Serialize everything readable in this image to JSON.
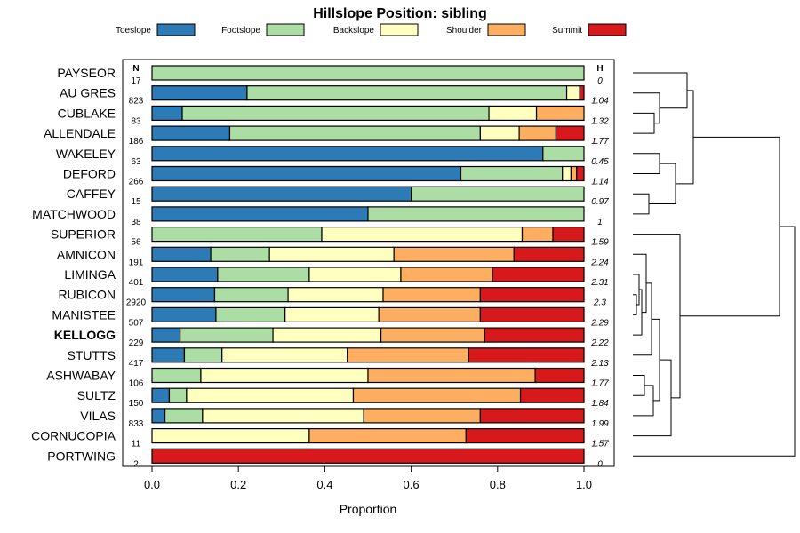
{
  "chart_data": {
    "type": "bar",
    "orientation": "horizontal",
    "stacked": true,
    "title": "Hillslope Position: sibling",
    "xlabel": "Proportion",
    "ylabel": "",
    "xlim": [
      0,
      1
    ],
    "xticks": [
      "0.0",
      "0.2",
      "0.4",
      "0.6",
      "0.8",
      "1.0"
    ],
    "n_header": "N",
    "h_header": "H",
    "legend": [
      {
        "name": "Toeslope",
        "color": "#2c7bb6"
      },
      {
        "name": "Footslope",
        "color": "#abdda4"
      },
      {
        "name": "Backslope",
        "color": "#ffffbf"
      },
      {
        "name": "Shoulder",
        "color": "#fdae61"
      },
      {
        "name": "Summit",
        "color": "#d7191c"
      }
    ],
    "rows": [
      {
        "label": "PAYSEOR",
        "n": "17",
        "h": "0",
        "values": [
          0,
          1.0,
          0,
          0,
          0
        ]
      },
      {
        "label": "AU GRES",
        "n": "823",
        "h": "1.04",
        "values": [
          0.22,
          0.74,
          0.03,
          0,
          0.01
        ]
      },
      {
        "label": "CUBLAKE",
        "n": "83",
        "h": "1.32",
        "values": [
          0.07,
          0.71,
          0.11,
          0.11,
          0
        ]
      },
      {
        "label": "ALLENDALE",
        "n": "186",
        "h": "1.77",
        "values": [
          0.18,
          0.58,
          0.09,
          0.085,
          0.065
        ]
      },
      {
        "label": "WAKELEY",
        "n": "63",
        "h": "0.45",
        "values": [
          0.905,
          0.095,
          0,
          0,
          0
        ]
      },
      {
        "label": "DEFORD",
        "n": "266",
        "h": "1.14",
        "values": [
          0.715,
          0.235,
          0.02,
          0.013,
          0.017
        ]
      },
      {
        "label": "CAFFEY",
        "n": "15",
        "h": "0.97",
        "values": [
          0.6,
          0.4,
          0,
          0,
          0
        ]
      },
      {
        "label": "MATCHWOOD",
        "n": "38",
        "h": "1",
        "values": [
          0.5,
          0.5,
          0,
          0,
          0
        ]
      },
      {
        "label": "SUPERIOR",
        "n": "56",
        "h": "1.59",
        "values": [
          0,
          0.393,
          0.464,
          0.071,
          0.072
        ]
      },
      {
        "label": "AMNICON",
        "n": "191",
        "h": "2.24",
        "values": [
          0.136,
          0.136,
          0.288,
          0.278,
          0.162
        ]
      },
      {
        "label": "LIMINGA",
        "n": "401",
        "h": "2.31",
        "values": [
          0.152,
          0.212,
          0.212,
          0.212,
          0.212
        ]
      },
      {
        "label": "RUBICON",
        "n": "2920",
        "h": "2.3",
        "values": [
          0.145,
          0.17,
          0.22,
          0.225,
          0.24
        ]
      },
      {
        "label": "MANISTEE",
        "n": "507",
        "h": "2.29",
        "values": [
          0.148,
          0.16,
          0.217,
          0.235,
          0.24
        ]
      },
      {
        "label": "KELLOGG",
        "n": "229",
        "h": "2.22",
        "values": [
          0.065,
          0.215,
          0.25,
          0.24,
          0.23
        ],
        "bold": true
      },
      {
        "label": "STUTTS",
        "n": "417",
        "h": "2.13",
        "values": [
          0.075,
          0.087,
          0.29,
          0.281,
          0.267
        ]
      },
      {
        "label": "ASHWABAY",
        "n": "106",
        "h": "1.77",
        "values": [
          0,
          0.113,
          0.387,
          0.387,
          0.113
        ]
      },
      {
        "label": "SULTZ",
        "n": "150",
        "h": "1.84",
        "values": [
          0.04,
          0.04,
          0.386,
          0.387,
          0.147
        ]
      },
      {
        "label": "VILAS",
        "n": "833",
        "h": "1.99",
        "values": [
          0.03,
          0.087,
          0.373,
          0.27,
          0.24
        ]
      },
      {
        "label": "CORNUCOPIA",
        "n": "11",
        "h": "1.57",
        "values": [
          0,
          0,
          0.364,
          0.363,
          0.273
        ]
      },
      {
        "label": "PORTWING",
        "n": "2",
        "h": "0",
        "values": [
          0,
          0,
          0,
          0,
          1.0
        ]
      }
    ]
  }
}
